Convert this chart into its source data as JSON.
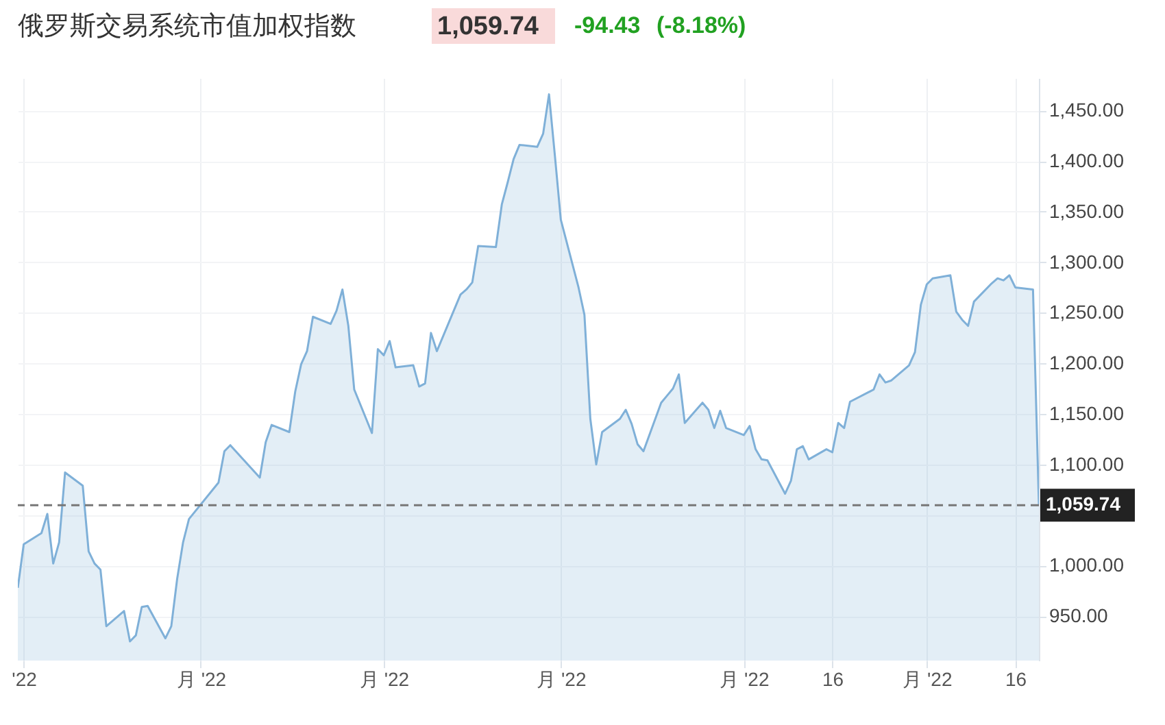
{
  "chart_data": {
    "type": "area",
    "title": "俄罗斯交易系统市值加权指数",
    "annotations": [
      "1,059.74",
      "-94.43",
      "(-8.18%)"
    ],
    "x": [
      "2022-03-31",
      "2022-04-01",
      "2022-04-04",
      "2022-04-05",
      "2022-04-06",
      "2022-04-07",
      "2022-04-08",
      "2022-04-11",
      "2022-04-12",
      "2022-04-13",
      "2022-04-14",
      "2022-04-15",
      "2022-04-18",
      "2022-04-19",
      "2022-04-20",
      "2022-04-21",
      "2022-04-22",
      "2022-04-25",
      "2022-04-26",
      "2022-04-27",
      "2022-04-28",
      "2022-04-29",
      "2022-05-04",
      "2022-05-05",
      "2022-05-06",
      "2022-05-11",
      "2022-05-12",
      "2022-05-13",
      "2022-05-16",
      "2022-05-17",
      "2022-05-18",
      "2022-05-19",
      "2022-05-20",
      "2022-05-23",
      "2022-05-24",
      "2022-05-25",
      "2022-05-26",
      "2022-05-27",
      "2022-05-30",
      "2022-05-31",
      "2022-06-01",
      "2022-06-02",
      "2022-06-03",
      "2022-06-06",
      "2022-06-07",
      "2022-06-08",
      "2022-06-09",
      "2022-06-10",
      "2022-06-14",
      "2022-06-15",
      "2022-06-16",
      "2022-06-17",
      "2022-06-20",
      "2022-06-21",
      "2022-06-22",
      "2022-06-23",
      "2022-06-24",
      "2022-06-27",
      "2022-06-28",
      "2022-06-29",
      "2022-06-30",
      "2022-07-01",
      "2022-07-04",
      "2022-07-05",
      "2022-07-06",
      "2022-07-07",
      "2022-07-08",
      "2022-07-11",
      "2022-07-12",
      "2022-07-13",
      "2022-07-14",
      "2022-07-15",
      "2022-07-18",
      "2022-07-19",
      "2022-07-20",
      "2022-07-21",
      "2022-07-22",
      "2022-07-25",
      "2022-07-26",
      "2022-07-27",
      "2022-07-28",
      "2022-07-29",
      "2022-08-01",
      "2022-08-02",
      "2022-08-03",
      "2022-08-04",
      "2022-08-05",
      "2022-08-08",
      "2022-08-09",
      "2022-08-10",
      "2022-08-11",
      "2022-08-12",
      "2022-08-15",
      "2022-08-16",
      "2022-08-17",
      "2022-08-18",
      "2022-08-19",
      "2022-08-22",
      "2022-08-23",
      "2022-08-24",
      "2022-08-25",
      "2022-08-26",
      "2022-08-29",
      "2022-08-30",
      "2022-08-31",
      "2022-09-01",
      "2022-09-02",
      "2022-09-05",
      "2022-09-06",
      "2022-09-07",
      "2022-09-08",
      "2022-09-09",
      "2022-09-12",
      "2022-09-13",
      "2022-09-14",
      "2022-09-15",
      "2022-09-16",
      "2022-09-19",
      "2022-09-20"
    ],
    "series": [
      {
        "color": "#7fb0d8",
        "values": [
          978,
          1021,
          1032,
          1051,
          1002,
          1023,
          1092,
          1079,
          1014,
          1002,
          996,
          940,
          955,
          925,
          931,
          959,
          960,
          928,
          940,
          987,
          1023,
          1046,
          1082,
          1113,
          1119,
          1087,
          1122,
          1139,
          1132,
          1172,
          1199,
          1212,
          1246,
          1239,
          1252,
          1273,
          1237,
          1174,
          1131,
          1214,
          1208,
          1222,
          1196,
          1198,
          1177,
          1180,
          1230,
          1212,
          1268,
          1273,
          1280,
          1316,
          1315,
          1357,
          1379,
          1402,
          1416,
          1414,
          1427,
          1466,
          1405,
          1342,
          1275,
          1248,
          1145,
          1100,
          1132,
          1145,
          1154,
          1140,
          1120,
          1113,
          1161,
          1168,
          1175,
          1189,
          1141,
          1161,
          1154,
          1136,
          1153,
          1136,
          1129,
          1138,
          1115,
          1105,
          1104,
          1071,
          1084,
          1115,
          1118,
          1105,
          1115,
          1112,
          1141,
          1136,
          1162,
          1171,
          1174,
          1189,
          1181,
          1183,
          1198,
          1211,
          1258,
          1278,
          1284,
          1287,
          1251,
          1243,
          1237,
          1261,
          1279,
          1284,
          1282,
          1287,
          1275,
          1273,
          1059.74
        ]
      }
    ],
    "xlim": [
      "2022-03-31",
      "2022-09-20"
    ],
    "xticks": [
      {
        "value": "2022-04-01",
        "label": "'22"
      },
      {
        "value": "2022-05-01",
        "label": "月 '22"
      },
      {
        "value": "2022-06-01",
        "label": "月 '22"
      },
      {
        "value": "2022-07-01",
        "label": "月 '22"
      },
      {
        "value": "2022-08-01",
        "label": "月 '22"
      },
      {
        "value": "2022-08-16",
        "label": "16"
      },
      {
        "value": "2022-09-01",
        "label": "月 '22"
      },
      {
        "value": "2022-09-16",
        "label": "16"
      }
    ],
    "ylim": [
      906,
      1482
    ],
    "yticks": [
      {
        "value": 950,
        "label": "950.00"
      },
      {
        "value": 1000,
        "label": "1,000.00"
      },
      {
        "value": 1050,
        "label": null
      },
      {
        "value": 1100,
        "label": "1,100.00"
      },
      {
        "value": 1150,
        "label": "1,150.00"
      },
      {
        "value": 1200,
        "label": "1,200.00"
      },
      {
        "value": 1250,
        "label": "1,250.00"
      },
      {
        "value": 1300,
        "label": "1,300.00"
      },
      {
        "value": 1350,
        "label": "1,350.00"
      },
      {
        "value": 1400,
        "label": "1,400.00"
      },
      {
        "value": 1450,
        "label": "1,450.00"
      }
    ],
    "ref_lines": [
      {
        "axis": "y",
        "value": 1059.74,
        "label": "1,059.74",
        "color": "#777777",
        "line_style": "dashed"
      }
    ],
    "grid": true
  }
}
